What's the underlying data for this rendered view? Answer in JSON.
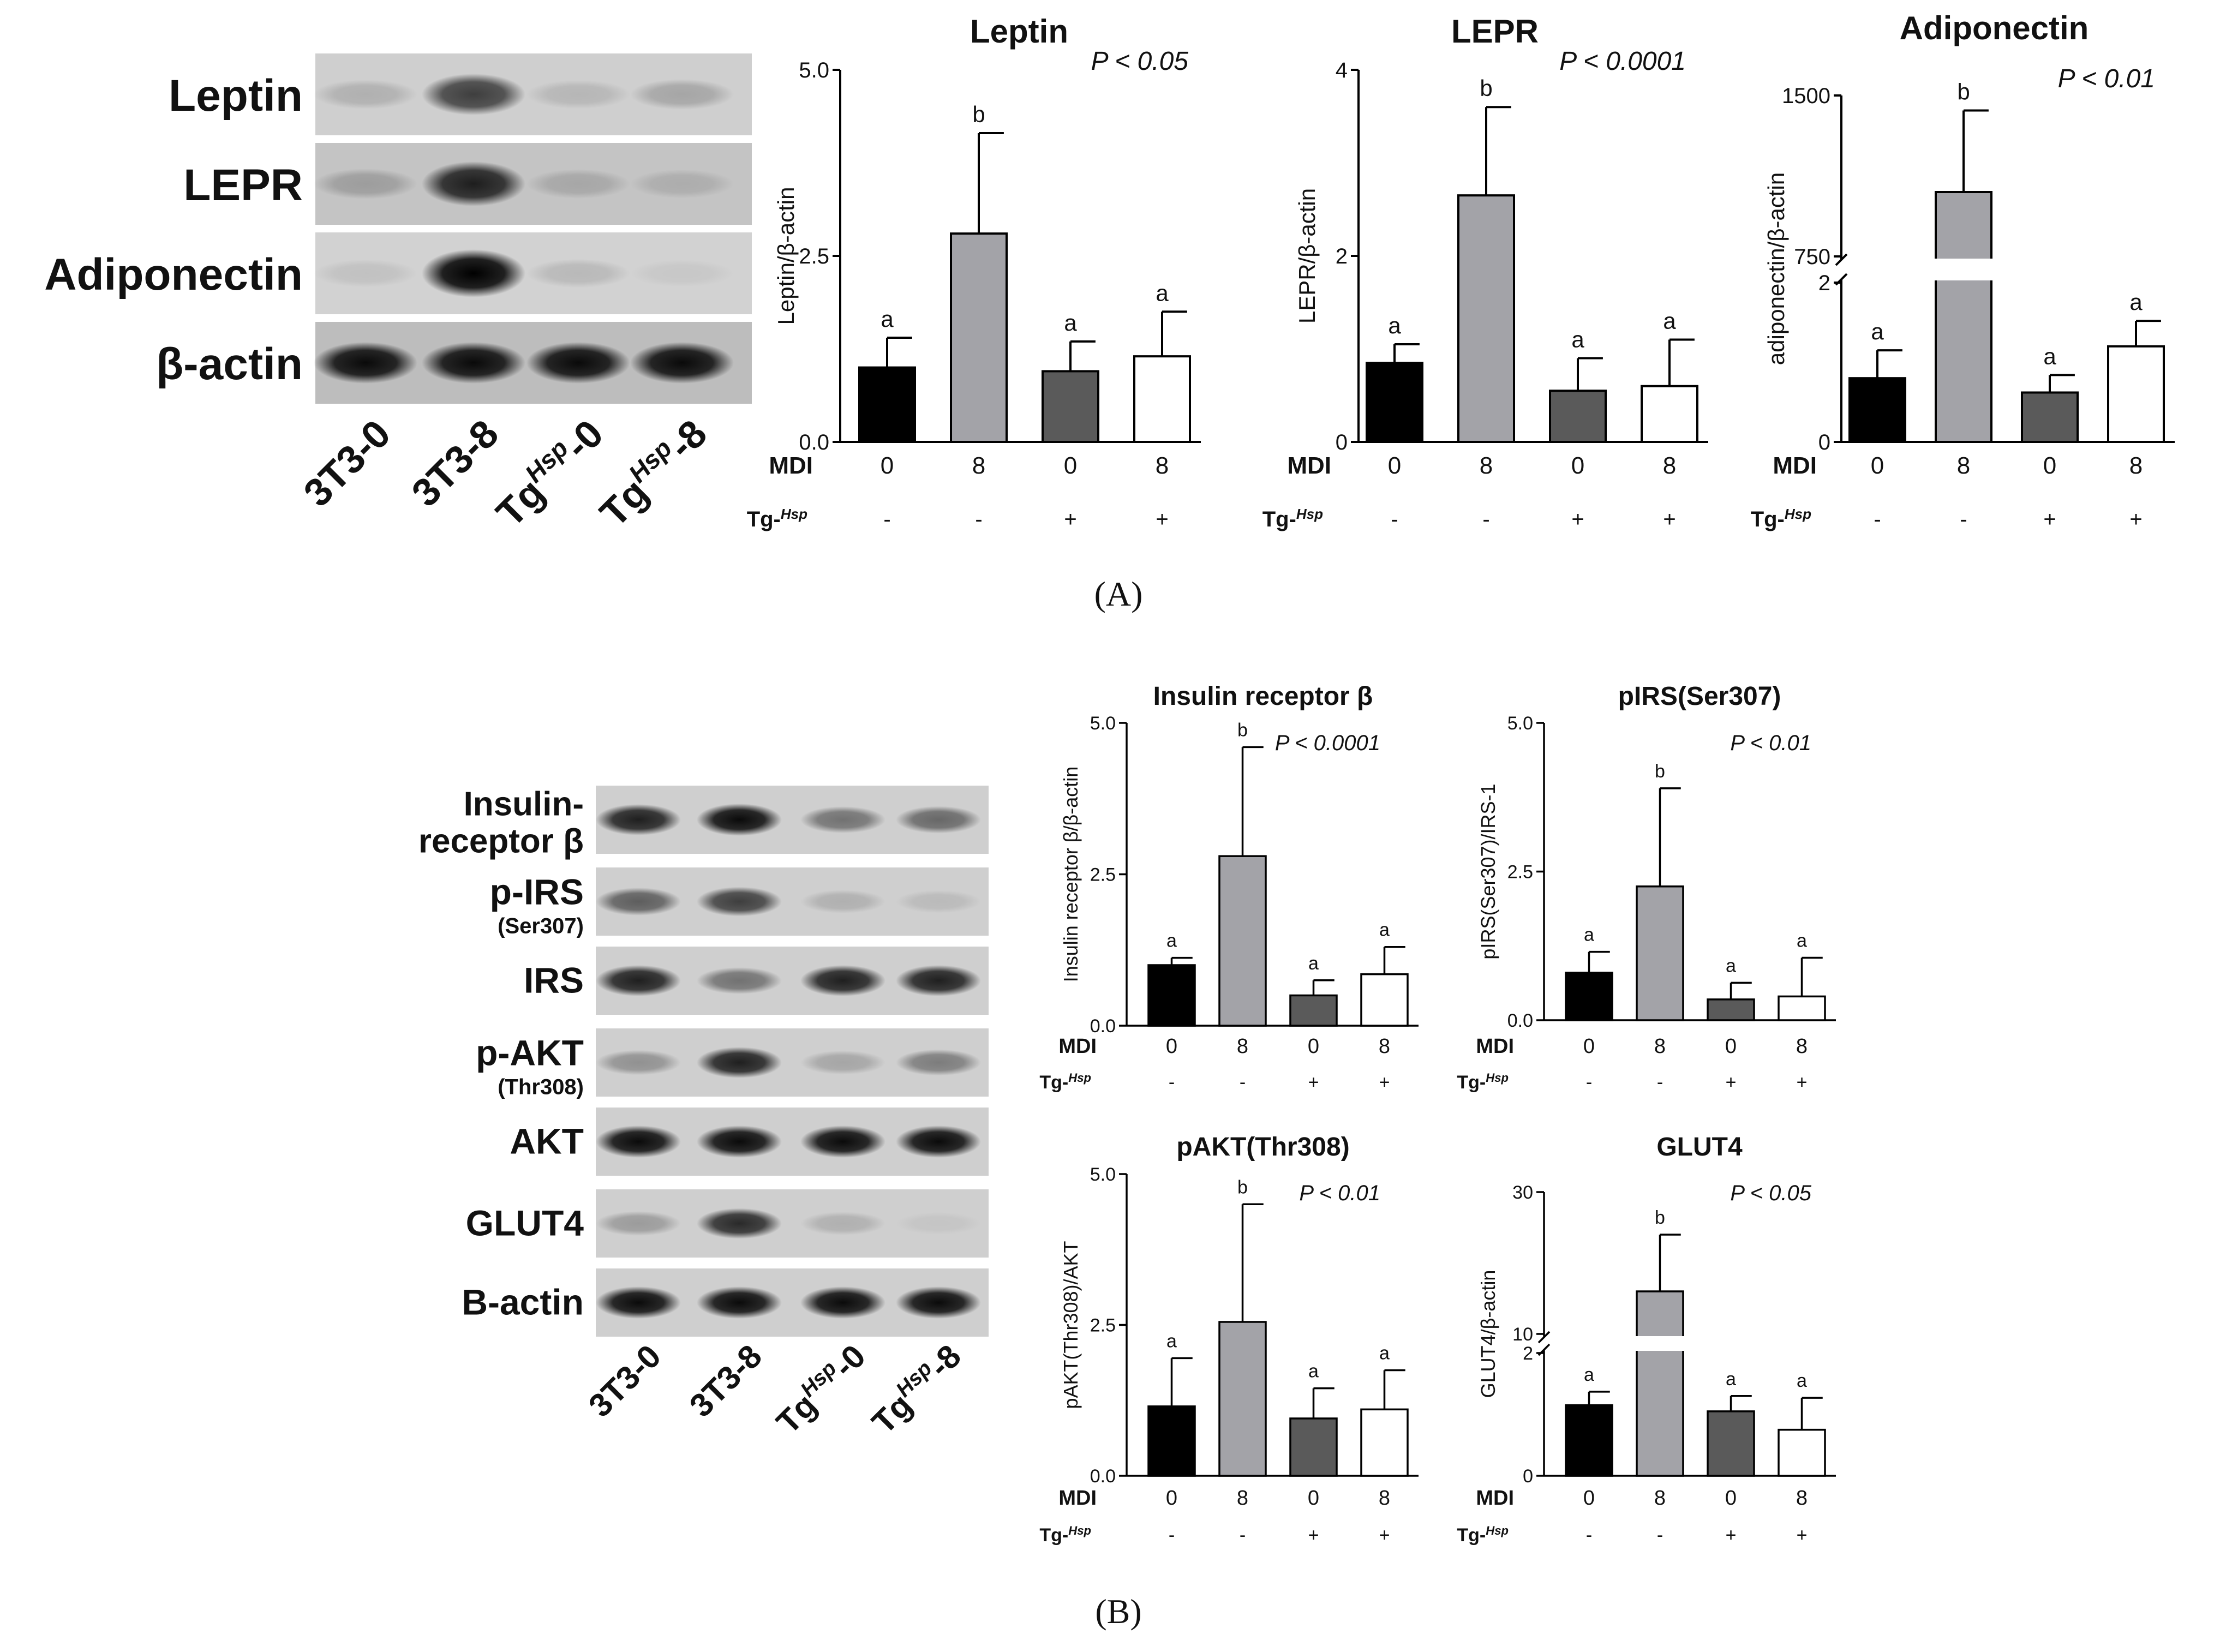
{
  "panels": [
    {
      "label": "(A)",
      "blot": {
        "rows": [
          "Leptin",
          "LEPR",
          "Adiponectin",
          "β-actin"
        ],
        "lanes": [
          {
            "base": "3T3-0",
            "sup": "",
            "tail": ""
          },
          {
            "base": "3T3-8",
            "sup": "",
            "tail": ""
          },
          {
            "base": "Tg",
            "sup": "Hsp",
            "tail": "-0"
          },
          {
            "base": "Tg",
            "sup": "Hsp",
            "tail": "-8"
          }
        ]
      }
    },
    {
      "label": "(B)",
      "blot": {
        "rows": [
          {
            "main": "Insulin-",
            "line2": "receptor β",
            "sub": ""
          },
          {
            "main": "p-IRS",
            "line2": "",
            "sub": "(Ser307)"
          },
          {
            "main": "IRS",
            "line2": "",
            "sub": ""
          },
          {
            "main": "p-AKT",
            "line2": "",
            "sub": "(Thr308)"
          },
          {
            "main": "AKT",
            "line2": "",
            "sub": ""
          },
          {
            "main": "GLUT4",
            "line2": "",
            "sub": ""
          },
          {
            "main": "B-actin",
            "line2": "",
            "sub": ""
          }
        ],
        "lanes": [
          {
            "base": "3T3-0",
            "sup": "",
            "tail": ""
          },
          {
            "base": "3T3-8",
            "sup": "",
            "tail": ""
          },
          {
            "base": "Tg",
            "sup": "Hsp",
            "tail": "-0"
          },
          {
            "base": "Tg",
            "sup": "Hsp",
            "tail": "-8"
          }
        ]
      }
    }
  ],
  "treatment_rows": {
    "mdi_label": "MDI",
    "mdi_values": [
      "0",
      "8",
      "0",
      "8"
    ],
    "tg_label": "Tg-",
    "tg_sup": "Hsp",
    "tg_values": [
      "-",
      "-",
      "+",
      "+"
    ]
  },
  "colors": {
    "bars": [
      "#000000",
      "#a3a3a8",
      "#5a5a5a",
      "#ffffff"
    ],
    "outline": "#000000"
  },
  "chart_data": [
    {
      "type": "bar",
      "panel": "A",
      "title": "Leptin",
      "annotation": "P < 0.05",
      "ylabel": "Leptin/β-actin",
      "ylim": [
        0,
        5
      ],
      "yticks": [
        "0.0",
        "2.5",
        "5.0"
      ],
      "categories": [
        "3T3-0",
        "3T3-8",
        "TgHsp-0",
        "TgHsp-8"
      ],
      "values": [
        1.0,
        2.8,
        0.95,
        1.15
      ],
      "errors": [
        0.4,
        1.35,
        0.4,
        0.6
      ],
      "letters": [
        "a",
        "b",
        "a",
        "a"
      ]
    },
    {
      "type": "bar",
      "panel": "A",
      "title": "LEPR",
      "annotation": "P < 0.0001",
      "ylabel": "LEPR/β-actin",
      "ylim": [
        0,
        4
      ],
      "yticks": [
        "0",
        "2",
        "4"
      ],
      "categories": [
        "3T3-0",
        "3T3-8",
        "TgHsp-0",
        "TgHsp-8"
      ],
      "values": [
        0.85,
        2.65,
        0.55,
        0.6
      ],
      "errors": [
        0.2,
        0.95,
        0.35,
        0.5
      ],
      "letters": [
        "a",
        "b",
        "a",
        "a"
      ]
    },
    {
      "type": "bar",
      "panel": "A",
      "title": "Adiponectin",
      "annotation": "P < 0.01",
      "ylabel": "adiponectin/β-actin",
      "broken_axis": true,
      "ylim_lower": [
        0,
        2
      ],
      "ylim_upper": [
        750,
        1500
      ],
      "yticks": [
        "0",
        "2",
        "750",
        "1500"
      ],
      "categories": [
        "3T3-0",
        "3T3-8",
        "TgHsp-0",
        "TgHsp-8"
      ],
      "values": [
        0.8,
        1050,
        0.62,
        1.2
      ],
      "errors": [
        0.35,
        380,
        0.22,
        0.32
      ],
      "letters": [
        "a",
        "b",
        "a",
        "a"
      ]
    },
    {
      "type": "bar",
      "panel": "B",
      "title": "Insulin receptor β",
      "annotation": "P < 0.0001",
      "ylabel": "Insulin receptor β/β-actin",
      "ylim": [
        0,
        5
      ],
      "yticks": [
        "0.0",
        "2.5",
        "5.0"
      ],
      "categories": [
        "3T3-0",
        "3T3-8",
        "TgHsp-0",
        "TgHsp-8"
      ],
      "values": [
        1.0,
        2.8,
        0.5,
        0.85
      ],
      "errors": [
        0.12,
        1.8,
        0.25,
        0.45
      ],
      "letters": [
        "a",
        "b",
        "a",
        "a"
      ]
    },
    {
      "type": "bar",
      "panel": "B",
      "title": "pIRS(Ser307)",
      "annotation": "P < 0.01",
      "ylabel": "pIRS(Ser307)/IRS-1",
      "ylim": [
        0,
        5
      ],
      "yticks": [
        "0.0",
        "2.5",
        "5.0"
      ],
      "categories": [
        "3T3-0",
        "3T3-8",
        "TgHsp-0",
        "TgHsp-8"
      ],
      "values": [
        0.8,
        2.25,
        0.35,
        0.4
      ],
      "errors": [
        0.35,
        1.65,
        0.28,
        0.65
      ],
      "letters": [
        "a",
        "b",
        "a",
        "a"
      ]
    },
    {
      "type": "bar",
      "panel": "B",
      "title": "pAKT(Thr308)",
      "annotation": "P < 0.01",
      "ylabel": "pAKT(Thr308)/AKT",
      "ylim": [
        0,
        5
      ],
      "yticks": [
        "0.0",
        "2.5",
        "5.0"
      ],
      "categories": [
        "3T3-0",
        "3T3-8",
        "TgHsp-0",
        "TgHsp-8"
      ],
      "values": [
        1.15,
        2.55,
        0.95,
        1.1
      ],
      "errors": [
        0.8,
        1.95,
        0.5,
        0.65
      ],
      "letters": [
        "a",
        "b",
        "a",
        "a"
      ]
    },
    {
      "type": "bar",
      "panel": "B",
      "title": "GLUT4",
      "annotation": "P < 0.05",
      "ylabel": "GLUT4/β-actin",
      "broken_axis": true,
      "ylim_lower": [
        0,
        2
      ],
      "ylim_upper": [
        10,
        30
      ],
      "yticks": [
        "0",
        "2",
        "10",
        "30"
      ],
      "categories": [
        "3T3-0",
        "3T3-8",
        "TgHsp-0",
        "TgHsp-8"
      ],
      "values": [
        1.15,
        16,
        1.05,
        0.75
      ],
      "errors": [
        0.22,
        8,
        0.25,
        0.52
      ],
      "letters": [
        "a",
        "b",
        "a",
        "a"
      ]
    }
  ]
}
